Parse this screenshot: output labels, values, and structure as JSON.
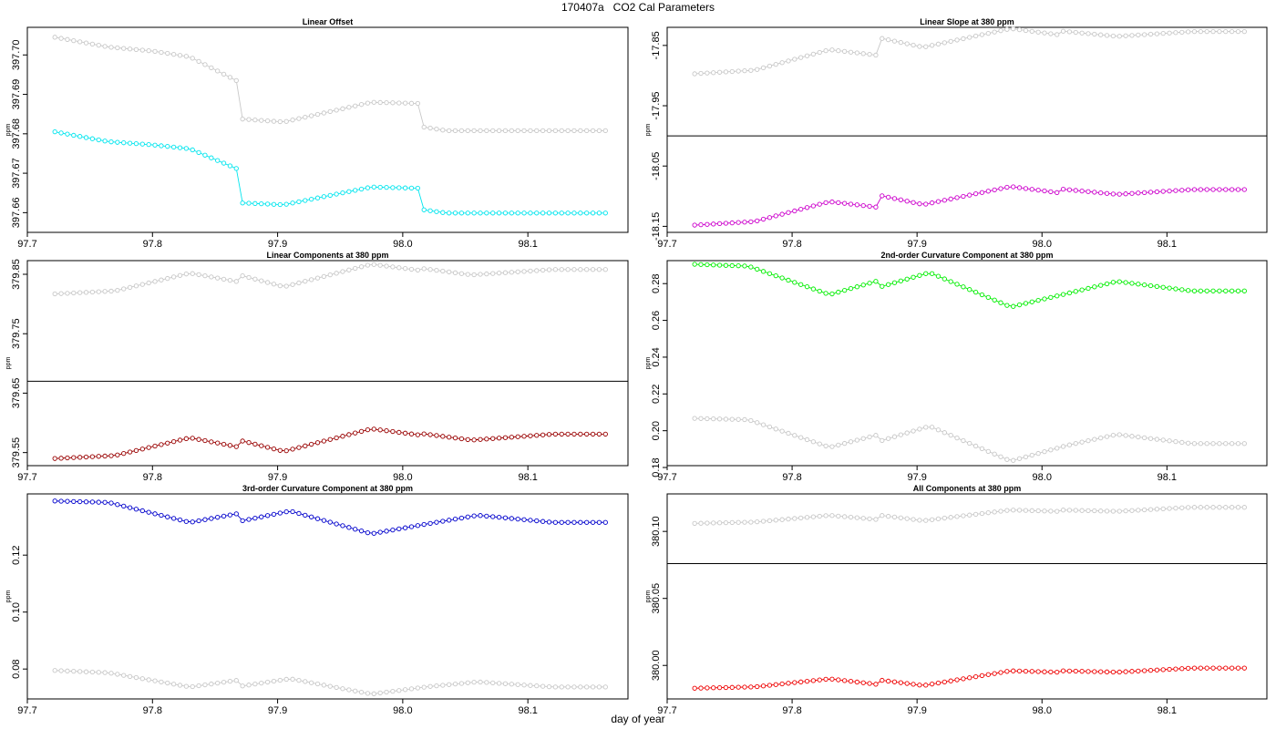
{
  "page": {
    "title": "170407a   CO2 Cal Parameters",
    "xlabel": "day of year"
  },
  "colors": {
    "reference": "#c8c8c8",
    "frame": "#000000"
  },
  "chart_data": [
    {
      "type": "scatter",
      "title": "Linear Offset",
      "ylabel": "ppm",
      "xlim": [
        97.7,
        98.18
      ],
      "ylim": [
        397.655,
        397.707
      ],
      "xticks": [
        97.7,
        97.8,
        97.9,
        98.0,
        98.1
      ],
      "xtick_labels": [
        "97.7",
        "97.8",
        "97.9",
        "98.0",
        "98.1"
      ],
      "yticks": [
        397.66,
        397.67,
        397.68,
        397.69,
        397.7
      ],
      "ytick_labels": [
        "397.66",
        "397.67",
        "397.68",
        "397.69",
        "397.70"
      ],
      "ref_line": null,
      "series": [
        {
          "name": "reference",
          "color": "#c8c8c8",
          "knots": [
            [
              97.722,
              397.7045
            ],
            [
              97.765,
              397.702
            ],
            [
              97.8,
              397.701
            ],
            [
              97.83,
              397.6995
            ],
            [
              97.867,
              397.6935
            ],
            [
              97.869,
              397.6838
            ],
            [
              97.905,
              397.683
            ],
            [
              97.975,
              397.688
            ],
            [
              98.012,
              397.6877
            ],
            [
              98.015,
              397.6818
            ],
            [
              98.035,
              397.6808
            ],
            [
              98.16,
              397.6808
            ]
          ]
        },
        {
          "name": "Linear Offset",
          "color": "#00e5ee",
          "knots": [
            [
              97.722,
              397.6805
            ],
            [
              97.765,
              397.678
            ],
            [
              97.8,
              397.6772
            ],
            [
              97.83,
              397.6762
            ],
            [
              97.867,
              397.6712
            ],
            [
              97.869,
              397.6625
            ],
            [
              97.905,
              397.662
            ],
            [
              97.975,
              397.6665
            ],
            [
              98.012,
              397.6662
            ],
            [
              98.015,
              397.6608
            ],
            [
              98.035,
              397.6599
            ],
            [
              98.16,
              397.6599
            ]
          ]
        }
      ]
    },
    {
      "type": "scatter",
      "title": "Linear Slope at 380 ppm",
      "ylabel": "ppm",
      "xlim": [
        97.7,
        98.18
      ],
      "ylim": [
        -18.16,
        -17.82
      ],
      "xticks": [
        97.7,
        97.8,
        97.9,
        98.0,
        98.1
      ],
      "xtick_labels": [
        "97.7",
        "97.8",
        "97.9",
        "98.0",
        "98.1"
      ],
      "yticks": [
        -18.15,
        -18.05,
        -17.95,
        -17.85
      ],
      "ytick_labels": [
        "-18.15",
        "-18.05",
        "-17.95",
        "-17.85"
      ],
      "ref_line": -18.0,
      "series": [
        {
          "name": "reference",
          "color": "#c8c8c8",
          "knots": [
            [
              97.722,
              -17.897
            ],
            [
              97.77,
              -17.891
            ],
            [
              97.83,
              -17.857
            ],
            [
              97.867,
              -17.866
            ],
            [
              97.871,
              -17.838
            ],
            [
              97.905,
              -17.853
            ],
            [
              97.975,
              -17.822
            ],
            [
              98.012,
              -17.832
            ],
            [
              98.015,
              -17.826
            ],
            [
              98.06,
              -17.835
            ],
            [
              98.12,
              -17.827
            ],
            [
              98.16,
              -17.827
            ]
          ]
        },
        {
          "name": "Linear Slope at 380 ppm",
          "color": "#cc00cc",
          "knots": [
            [
              97.722,
              -18.148
            ],
            [
              97.77,
              -18.142
            ],
            [
              97.83,
              -18.109
            ],
            [
              97.867,
              -18.118
            ],
            [
              97.871,
              -18.099
            ],
            [
              97.905,
              -18.114
            ],
            [
              97.975,
              -18.084
            ],
            [
              98.012,
              -18.094
            ],
            [
              98.015,
              -18.088
            ],
            [
              98.06,
              -18.097
            ],
            [
              98.12,
              -18.089
            ],
            [
              98.16,
              -18.089
            ]
          ]
        }
      ]
    },
    {
      "type": "scatter",
      "title": "Linear Components at 380 ppm",
      "ylabel": "ppm",
      "xlim": [
        97.7,
        98.18
      ],
      "ylim": [
        379.528,
        379.873
      ],
      "xticks": [
        97.7,
        97.8,
        97.9,
        98.0,
        98.1
      ],
      "xtick_labels": [
        "97.7",
        "97.8",
        "97.9",
        "98.0",
        "98.1"
      ],
      "yticks": [
        379.55,
        379.65,
        379.75,
        379.85
      ],
      "ytick_labels": [
        "379.55",
        "379.65",
        "379.75",
        "379.85"
      ],
      "ref_line": 379.67,
      "series": [
        {
          "name": "reference",
          "color": "#c8c8c8",
          "knots": [
            [
              97.722,
              379.817
            ],
            [
              97.77,
              379.822
            ],
            [
              97.83,
              379.852
            ],
            [
              97.867,
              379.838
            ],
            [
              97.871,
              379.848
            ],
            [
              97.905,
              379.829
            ],
            [
              97.975,
              379.867
            ],
            [
              98.012,
              379.857
            ],
            [
              98.015,
              379.86
            ],
            [
              98.055,
              379.849
            ],
            [
              98.12,
              379.858
            ],
            [
              98.16,
              379.858
            ]
          ]
        },
        {
          "name": "Linear Components at 380 ppm",
          "color": "#990000",
          "knots": [
            [
              97.722,
              379.54
            ],
            [
              97.77,
              379.545
            ],
            [
              97.83,
              379.575
            ],
            [
              97.867,
              379.56
            ],
            [
              97.871,
              379.57
            ],
            [
              97.905,
              379.552
            ],
            [
              97.975,
              379.59
            ],
            [
              98.012,
              379.58
            ],
            [
              98.015,
              379.582
            ],
            [
              98.055,
              379.571
            ],
            [
              98.12,
              379.581
            ],
            [
              98.16,
              379.581
            ]
          ]
        }
      ]
    },
    {
      "type": "scatter",
      "title": "2nd-order Curvature Component at 380 ppm",
      "ylabel": "ppm",
      "xlim": [
        97.7,
        98.18
      ],
      "ylim": [
        0.181,
        0.2925
      ],
      "xticks": [
        97.7,
        97.8,
        97.9,
        98.0,
        98.1
      ],
      "xtick_labels": [
        "97.7",
        "97.8",
        "97.9",
        "98.0",
        "98.1"
      ],
      "yticks": [
        0.18,
        0.2,
        0.22,
        0.24,
        0.26,
        0.28
      ],
      "ytick_labels": [
        "0.18",
        "0.20",
        "0.22",
        "0.24",
        "0.26",
        "0.28"
      ],
      "ref_line": null,
      "series": [
        {
          "name": "reference",
          "color": "#c8c8c8",
          "knots": [
            [
              97.722,
              0.2067
            ],
            [
              97.765,
              0.206
            ],
            [
              97.83,
              0.191
            ],
            [
              97.867,
              0.1975
            ],
            [
              97.871,
              0.1945
            ],
            [
              97.91,
              0.2025
            ],
            [
              97.975,
              0.1835
            ],
            [
              98.02,
              0.192
            ],
            [
              98.06,
              0.198
            ],
            [
              98.12,
              0.193
            ],
            [
              98.16,
              0.193
            ]
          ]
        },
        {
          "name": "2nd-order Curvature Component at 380 ppm",
          "color": "#00ee00",
          "knots": [
            [
              97.722,
              0.2905
            ],
            [
              97.765,
              0.2895
            ],
            [
              97.83,
              0.274
            ],
            [
              97.867,
              0.2812
            ],
            [
              97.871,
              0.2783
            ],
            [
              97.91,
              0.286
            ],
            [
              97.975,
              0.2673
            ],
            [
              98.02,
              0.2746
            ],
            [
              98.06,
              0.2812
            ],
            [
              98.12,
              0.276
            ],
            [
              98.16,
              0.276
            ]
          ]
        }
      ]
    },
    {
      "type": "scatter",
      "title": "3rd-order Curvature Component at 380 ppm",
      "ylabel": "ppm",
      "xlim": [
        97.7,
        98.18
      ],
      "ylim": [
        0.0695,
        0.1415
      ],
      "xticks": [
        97.7,
        97.8,
        97.9,
        98.0,
        98.1
      ],
      "xtick_labels": [
        "97.7",
        "97.8",
        "97.9",
        "98.0",
        "98.1"
      ],
      "yticks": [
        0.08,
        0.1,
        0.12
      ],
      "ytick_labels": [
        "0.08",
        "0.10",
        "0.12"
      ],
      "ref_line": null,
      "series": [
        {
          "name": "reference",
          "color": "#c8c8c8",
          "knots": [
            [
              97.722,
              0.0795
            ],
            [
              97.765,
              0.0787
            ],
            [
              97.83,
              0.0737
            ],
            [
              97.867,
              0.076
            ],
            [
              97.871,
              0.074
            ],
            [
              97.91,
              0.0766
            ],
            [
              97.975,
              0.0712
            ],
            [
              98.02,
              0.0738
            ],
            [
              98.06,
              0.0755
            ],
            [
              98.12,
              0.0737
            ],
            [
              98.16,
              0.0737
            ]
          ]
        },
        {
          "name": "3rd-order Curvature Component at 380 ppm",
          "color": "#0000cc",
          "knots": [
            [
              97.722,
              0.139
            ],
            [
              97.765,
              0.1385
            ],
            [
              97.83,
              0.1315
            ],
            [
              97.867,
              0.1345
            ],
            [
              97.871,
              0.132
            ],
            [
              97.91,
              0.1355
            ],
            [
              97.975,
              0.1275
            ],
            [
              98.02,
              0.131
            ],
            [
              98.06,
              0.134
            ],
            [
              98.12,
              0.1315
            ],
            [
              98.16,
              0.1315
            ]
          ]
        }
      ]
    },
    {
      "type": "scatter",
      "title": "All Components at 380 ppm",
      "ylabel": "ppm",
      "xlim": [
        97.7,
        98.18
      ],
      "ylim": [
        379.975,
        380.128
      ],
      "xticks": [
        97.7,
        97.8,
        97.9,
        98.0,
        98.1
      ],
      "xtick_labels": [
        "97.7",
        "97.8",
        "97.9",
        "98.0",
        "98.1"
      ],
      "yticks": [
        380.0,
        380.05,
        380.1
      ],
      "ytick_labels": [
        "380.00",
        "380.05",
        "380.10"
      ],
      "ref_line": 380.076,
      "series": [
        {
          "name": "reference",
          "color": "#c8c8c8",
          "knots": [
            [
              97.722,
              380.106
            ],
            [
              97.77,
              380.107
            ],
            [
              97.83,
              380.112
            ],
            [
              97.867,
              380.109
            ],
            [
              97.871,
              380.112
            ],
            [
              97.905,
              380.108
            ],
            [
              97.975,
              380.116
            ],
            [
              98.012,
              380.115
            ],
            [
              98.015,
              380.116
            ],
            [
              98.06,
              380.115
            ],
            [
              98.12,
              380.118
            ],
            [
              98.16,
              380.118
            ]
          ]
        },
        {
          "name": "All Components at 380 ppm",
          "color": "#ee0000",
          "knots": [
            [
              97.722,
              379.983
            ],
            [
              97.77,
              379.984
            ],
            [
              97.83,
              379.99
            ],
            [
              97.867,
              379.986
            ],
            [
              97.871,
              379.989
            ],
            [
              97.905,
              379.985
            ],
            [
              97.975,
              379.996
            ],
            [
              98.012,
              379.995
            ],
            [
              98.015,
              379.996
            ],
            [
              98.06,
              379.995
            ],
            [
              98.12,
              379.998
            ],
            [
              98.16,
              379.998
            ]
          ]
        }
      ]
    }
  ]
}
